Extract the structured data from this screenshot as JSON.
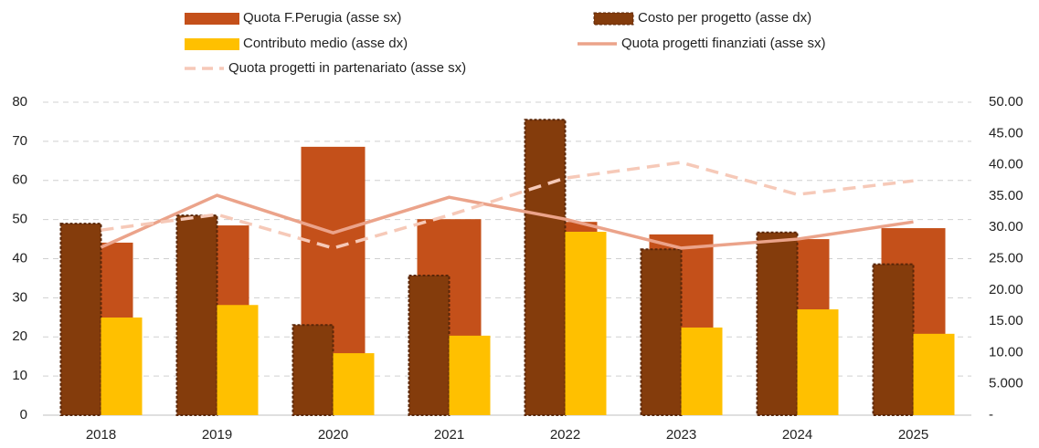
{
  "chart_data": {
    "type": "bar",
    "categories": [
      "2018",
      "2019",
      "2020",
      "2021",
      "2022",
      "2023",
      "2024",
      "2025"
    ],
    "ylim": [
      0,
      80
    ],
    "yticks": [
      0,
      10,
      20,
      30,
      40,
      50,
      60,
      70,
      80
    ],
    "y2lim": [
      0,
      50
    ],
    "y2ticks": [
      {
        "value": 0,
        "label": "-"
      },
      {
        "value": 5,
        "label": "5.000"
      },
      {
        "value": 10,
        "label": "10.00"
      },
      {
        "value": 15,
        "label": "15.00"
      },
      {
        "value": 20,
        "label": "20.00"
      },
      {
        "value": 25,
        "label": "25.00"
      },
      {
        "value": 30,
        "label": "30.00"
      },
      {
        "value": 35,
        "label": "35.00"
      },
      {
        "value": 40,
        "label": "40.00"
      },
      {
        "value": 45,
        "label": "45.00"
      },
      {
        "value": 50,
        "label": "50.00"
      }
    ],
    "grid": true,
    "series": [
      {
        "name": "Quota F.Perugia (asse sx)",
        "type": "bar",
        "color": "#c4501a",
        "values": [
          44.1,
          48.5,
          68.6,
          50.1,
          49.4,
          46.2,
          45.0,
          47.8
        ]
      },
      {
        "name": "Costo per progetto (asse dx)",
        "type": "bar",
        "axis": "y2",
        "color": "#843c0c",
        "values": [
          30.6,
          31.9,
          14.4,
          22.3,
          47.2,
          26.5,
          29.2,
          24.1
        ]
      },
      {
        "name": "Contributo medio (asse dx)",
        "type": "bar",
        "axis": "y2",
        "color": "#ffc000",
        "values": [
          15.6,
          17.6,
          9.9,
          12.7,
          29.3,
          14.0,
          16.9,
          13.0
        ]
      },
      {
        "name": "Quota progetti finanziati (asse sx)",
        "type": "line",
        "color": "#eba38a",
        "values": [
          42.9,
          56.2,
          46.6,
          55.7,
          50.1,
          42.7,
          45.0,
          49.4
        ]
      },
      {
        "name": "Quota progetti in partenariato (asse sx)",
        "type": "line",
        "dashed": true,
        "color": "#f6c9b8",
        "values": [
          47.3,
          51.3,
          42.7,
          51.1,
          60.6,
          64.6,
          56.4,
          59.9
        ]
      }
    ]
  }
}
